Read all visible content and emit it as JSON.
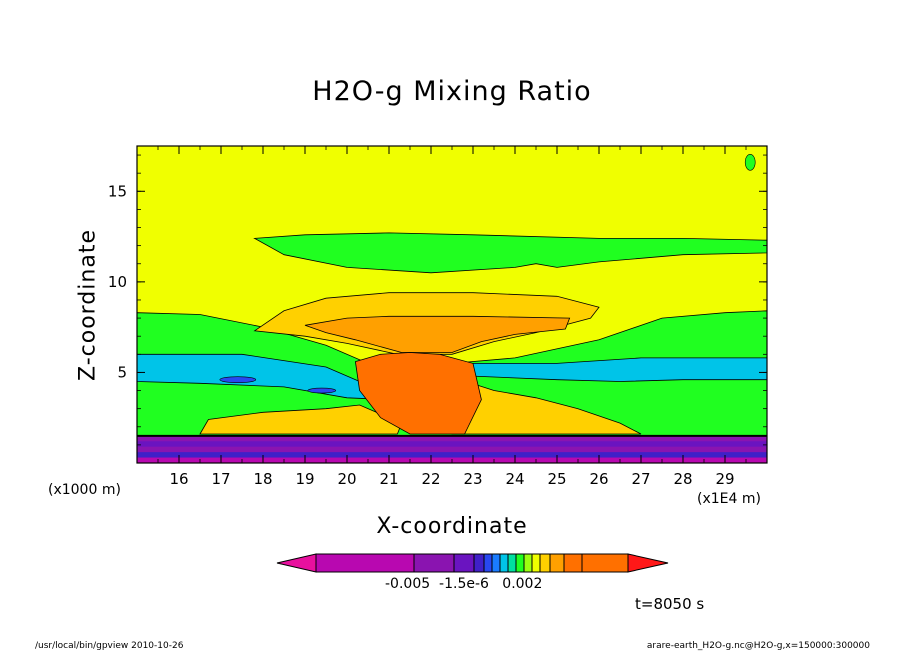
{
  "chart_data": {
    "type": "heatmap",
    "title": "H2O-g Mixing Ratio",
    "xlabel": "X-coordinate",
    "ylabel": "Z-coordinate",
    "x_unit": "(x1E4 m)",
    "y_unit": "(x1000 m)",
    "xlim": [
      15,
      30
    ],
    "ylim": [
      0,
      17.5
    ],
    "xticks": [
      16,
      17,
      18,
      19,
      20,
      21,
      22,
      23,
      24,
      25,
      26,
      27,
      28,
      29
    ],
    "yticks": [
      5,
      10,
      15
    ],
    "colorbar_labels": [
      "-0.005",
      "-1.5e-6",
      "0.002"
    ],
    "colorbar_colors": [
      "#e8109e",
      "#b808b0",
      "#8a14b0",
      "#6a14c0",
      "#4020c8",
      "#2848f0",
      "#1a7cff",
      "#00c4e8",
      "#00e0a0",
      "#20ff20",
      "#9cff10",
      "#f0ff00",
      "#ffd000",
      "#ffa000",
      "#ff7000",
      "#ff1818"
    ],
    "annotation": "t=8050 s",
    "levels": [
      {
        "name": "upper-atmosphere",
        "color": "#f0ff00"
      },
      {
        "name": "upper-moist-layer",
        "color": "#20ff20",
        "z_range": [
          11.5,
          12.5
        ]
      },
      {
        "name": "anvil",
        "color": "#ffd000",
        "x_range": [
          17.8,
          26
        ],
        "z_range": [
          7,
          9.3
        ]
      },
      {
        "name": "anvil-core",
        "color": "#ffa000",
        "x_range": [
          18.5,
          25.5
        ],
        "z_range": [
          7,
          8
        ]
      },
      {
        "name": "convective-core",
        "color": "#ff7000",
        "x_range": [
          20.5,
          23
        ],
        "z_range": [
          1.5,
          6
        ]
      },
      {
        "name": "mid-moist-layer",
        "color": "#00c4e8",
        "z_range": [
          4.5,
          6
        ]
      },
      {
        "name": "boundary-layer",
        "color": "#20ff20",
        "z_range": [
          1.5,
          4.5
        ]
      },
      {
        "name": "surface-layer",
        "color": "#8a14b0",
        "z_range": [
          0,
          1.5
        ]
      }
    ]
  },
  "footer": {
    "left": "/usr/local/bin/gpview  2010-10-26",
    "right": "arare-earth_H2O-g.nc@H2O-g,x=150000:300000"
  }
}
